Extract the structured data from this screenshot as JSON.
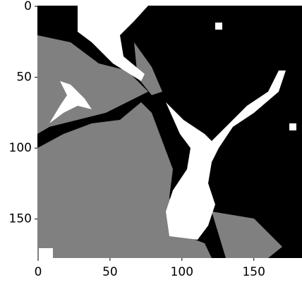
{
  "chart_data": {
    "type": "image",
    "xlim": [
      -0.5,
      183.5
    ],
    "ylim": [
      177.5,
      -0.5
    ],
    "xticks": [
      0,
      50,
      100,
      150
    ],
    "yticks": [
      0,
      50,
      100,
      150
    ]
  }
}
